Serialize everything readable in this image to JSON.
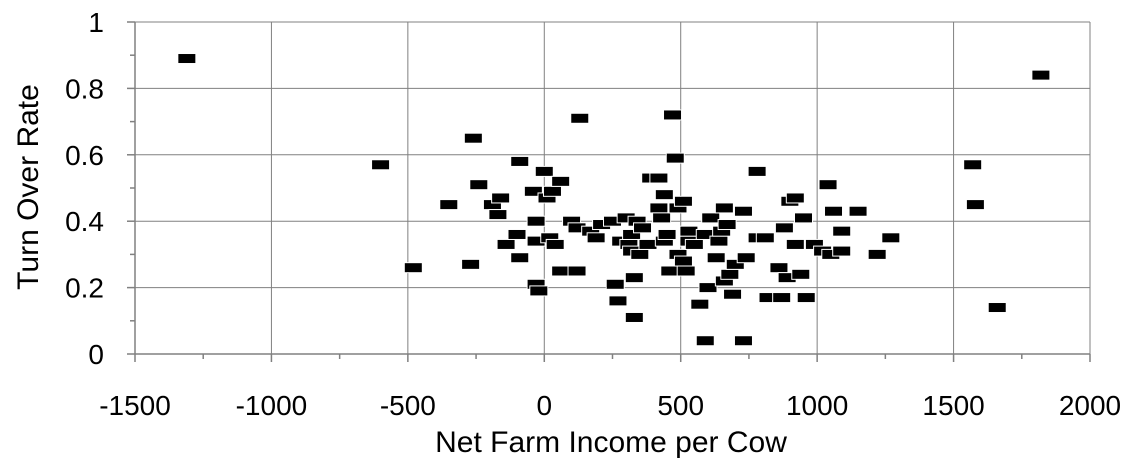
{
  "chart_data": {
    "type": "scatter",
    "title": "",
    "xlabel": "Net Farm Income per Cow",
    "ylabel": "Turn Over Rate",
    "xlim": [
      -1500,
      2000
    ],
    "ylim": [
      0,
      1
    ],
    "xticks": [
      "-1500",
      "-1000",
      "-500",
      "0",
      "500",
      "1000",
      "1500",
      "2000"
    ],
    "yticks": [
      "0",
      "0.2",
      "0.4",
      "0.6",
      "0.8",
      "1"
    ],
    "grid": true,
    "legend": "none",
    "marker_color": "#000000",
    "series": [
      {
        "points": [
          [
            -1310,
            0.89
          ],
          [
            1820,
            0.84
          ],
          [
            -600,
            0.57
          ],
          [
            -480,
            0.26
          ],
          [
            -350,
            0.45
          ],
          [
            -270,
            0.27
          ],
          [
            -260,
            0.65
          ],
          [
            -240,
            0.51
          ],
          [
            -190,
            0.45
          ],
          [
            -170,
            0.42
          ],
          [
            -160,
            0.47
          ],
          [
            -140,
            0.33
          ],
          [
            -100,
            0.36
          ],
          [
            -90,
            0.58
          ],
          [
            -90,
            0.29
          ],
          [
            -40,
            0.49
          ],
          [
            -30,
            0.4
          ],
          [
            -30,
            0.34
          ],
          [
            -30,
            0.21
          ],
          [
            -20,
            0.19
          ],
          [
            0,
            0.55
          ],
          [
            10,
            0.47
          ],
          [
            20,
            0.35
          ],
          [
            30,
            0.49
          ],
          [
            40,
            0.33
          ],
          [
            60,
            0.52
          ],
          [
            60,
            0.25
          ],
          [
            100,
            0.4
          ],
          [
            120,
            0.38
          ],
          [
            120,
            0.25
          ],
          [
            130,
            0.71
          ],
          [
            170,
            0.37
          ],
          [
            190,
            0.35
          ],
          [
            210,
            0.39
          ],
          [
            250,
            0.4
          ],
          [
            260,
            0.21
          ],
          [
            270,
            0.16
          ],
          [
            280,
            0.34
          ],
          [
            300,
            0.41
          ],
          [
            310,
            0.33
          ],
          [
            320,
            0.31
          ],
          [
            320,
            0.36
          ],
          [
            330,
            0.23
          ],
          [
            330,
            0.11
          ],
          [
            340,
            0.4
          ],
          [
            350,
            0.3
          ],
          [
            360,
            0.38
          ],
          [
            380,
            0.33
          ],
          [
            390,
            0.53
          ],
          [
            420,
            0.53
          ],
          [
            420,
            0.44
          ],
          [
            430,
            0.41
          ],
          [
            440,
            0.34
          ],
          [
            440,
            0.48
          ],
          [
            450,
            0.36
          ],
          [
            460,
            0.25
          ],
          [
            470,
            0.72
          ],
          [
            480,
            0.59
          ],
          [
            490,
            0.44
          ],
          [
            490,
            0.3
          ],
          [
            510,
            0.28
          ],
          [
            510,
            0.46
          ],
          [
            520,
            0.25
          ],
          [
            530,
            0.34
          ],
          [
            530,
            0.37
          ],
          [
            550,
            0.33
          ],
          [
            570,
            0.15
          ],
          [
            590,
            0.36
          ],
          [
            590,
            0.04
          ],
          [
            600,
            0.2
          ],
          [
            610,
            0.41
          ],
          [
            630,
            0.29
          ],
          [
            640,
            0.34
          ],
          [
            650,
            0.37
          ],
          [
            660,
            0.22
          ],
          [
            660,
            0.44
          ],
          [
            670,
            0.39
          ],
          [
            680,
            0.24
          ],
          [
            690,
            0.18
          ],
          [
            700,
            0.27
          ],
          [
            730,
            0.43
          ],
          [
            740,
            0.29
          ],
          [
            730,
            0.04
          ],
          [
            780,
            0.55
          ],
          [
            780,
            0.35
          ],
          [
            810,
            0.35
          ],
          [
            820,
            0.17
          ],
          [
            860,
            0.26
          ],
          [
            870,
            0.17
          ],
          [
            880,
            0.38
          ],
          [
            890,
            0.23
          ],
          [
            900,
            0.46
          ],
          [
            920,
            0.47
          ],
          [
            920,
            0.33
          ],
          [
            940,
            0.24
          ],
          [
            950,
            0.41
          ],
          [
            960,
            0.17
          ],
          [
            990,
            0.33
          ],
          [
            1020,
            0.31
          ],
          [
            1040,
            0.51
          ],
          [
            1050,
            0.3
          ],
          [
            1060,
            0.43
          ],
          [
            1090,
            0.31
          ],
          [
            1090,
            0.37
          ],
          [
            1150,
            0.43
          ],
          [
            1220,
            0.3
          ],
          [
            1270,
            0.35
          ],
          [
            1570,
            0.57
          ],
          [
            1580,
            0.45
          ],
          [
            1660,
            0.14
          ]
        ]
      }
    ]
  }
}
